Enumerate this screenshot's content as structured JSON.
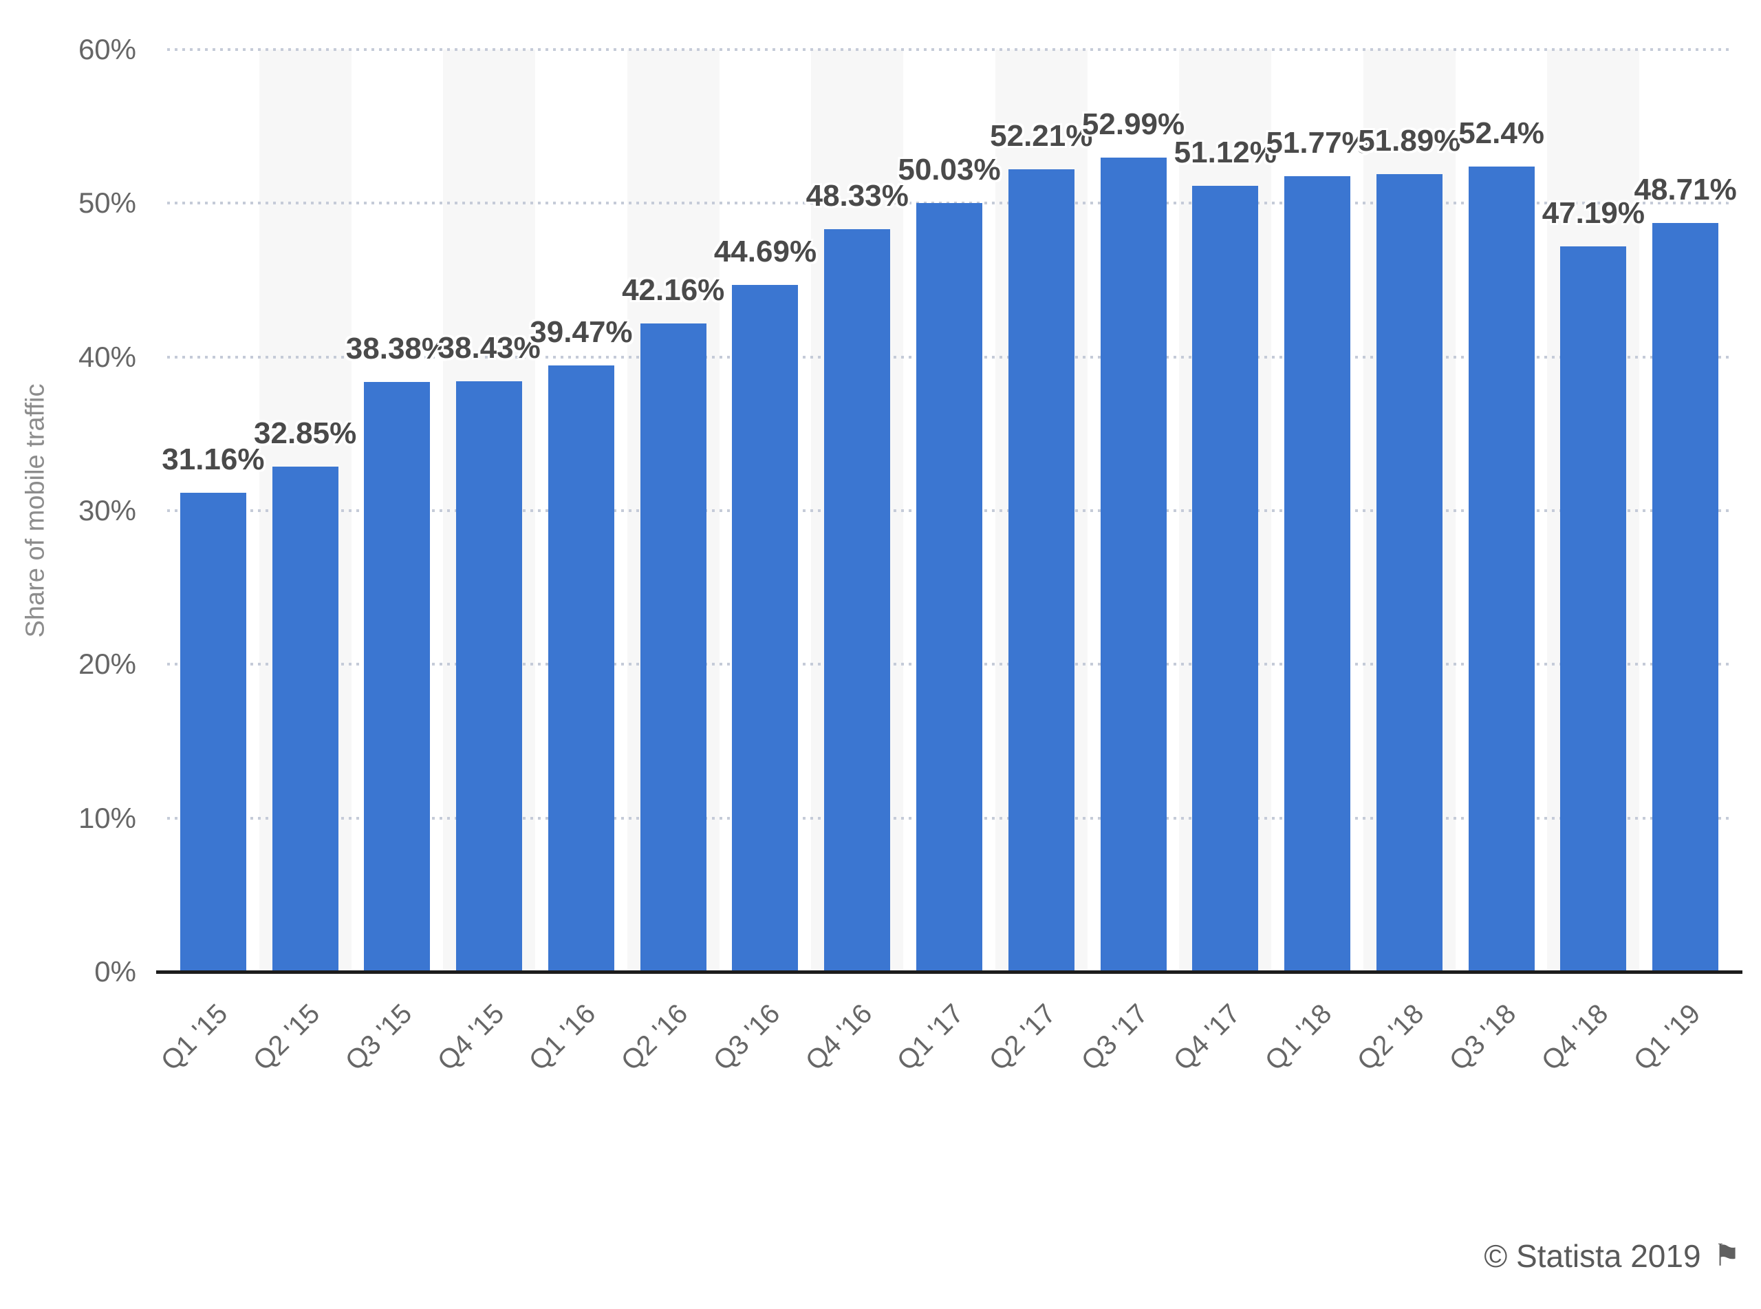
{
  "chart_data": {
    "type": "bar",
    "title": "",
    "xlabel": "",
    "ylabel": "Share of mobile traffic",
    "ylim": [
      0,
      60
    ],
    "ytick_labels": [
      "0%",
      "10%",
      "20%",
      "30%",
      "40%",
      "50%",
      "60%"
    ],
    "grid": "horizontal dotted gridlines every 10%",
    "legend_position": "none",
    "background_stripes": "alternating light column bands behind even categories",
    "categories": [
      "Q1 '15",
      "Q2 '15",
      "Q3 '15",
      "Q4 '15",
      "Q1 '16",
      "Q2 '16",
      "Q3 '16",
      "Q4 '16",
      "Q1 '17",
      "Q2 '17",
      "Q3 '17",
      "Q4 '17",
      "Q1 '18",
      "Q2 '18",
      "Q3 '18",
      "Q4 '18",
      "Q1 '19"
    ],
    "values": [
      31.16,
      32.85,
      38.38,
      38.43,
      39.47,
      42.16,
      44.69,
      48.33,
      50.03,
      52.21,
      52.99,
      51.12,
      51.77,
      51.89,
      52.4,
      47.19,
      48.71
    ],
    "value_labels": [
      "31.16%",
      "32.85%",
      "38.38%",
      "38.43%",
      "39.47%",
      "42.16%",
      "44.69%",
      "48.33%",
      "50.03%",
      "52.21%",
      "52.99%",
      "51.12%",
      "51.77%",
      "51.89%",
      "52.4%",
      "47.19%",
      "48.71%"
    ],
    "colors": {
      "bar": "#3b76d1",
      "stripe": "#f7f7f7",
      "grid": "#c5cbd8",
      "axis_line": "#1c1c1c",
      "tick_text": "#666666",
      "value_label_text": "#4a4a4a",
      "y_axis_title_text": "#8c8c8c",
      "footer_text": "#595959"
    }
  },
  "footer": {
    "copyright_text": "© Statista 2019",
    "flag_icon_glyph": "⚑"
  }
}
